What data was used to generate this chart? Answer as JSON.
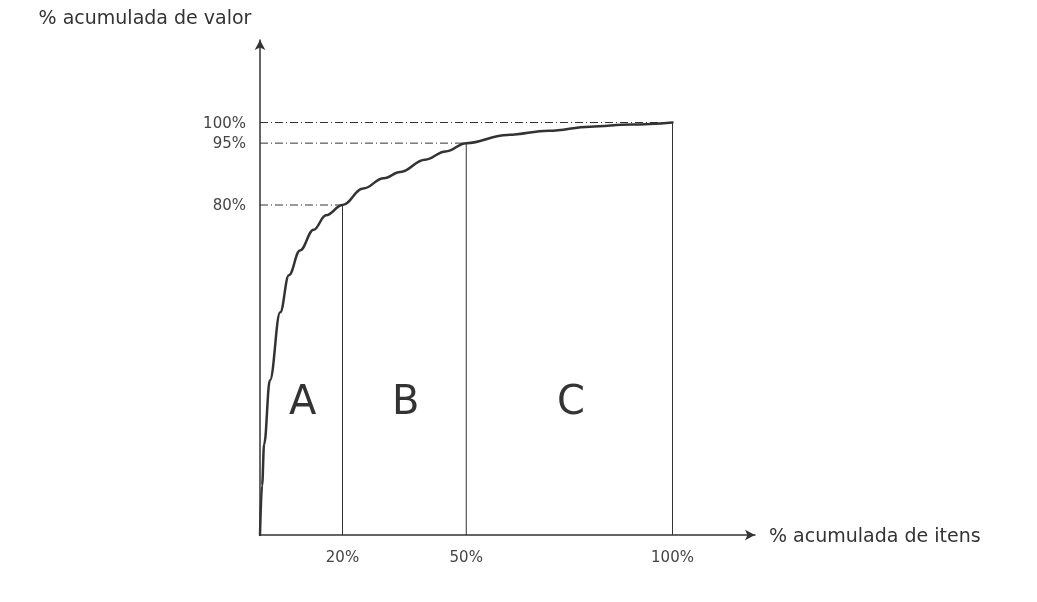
{
  "chart_data": {
    "type": "line",
    "xlabel": "% acumulada de itens",
    "ylabel": "% acumulada de valor",
    "series": [
      {
        "color": "#333333",
        "x": [
          0,
          0.5,
          1,
          2.4,
          4.9,
          7,
          9.7,
          13,
          16,
          20,
          25,
          30,
          34,
          40,
          45,
          50,
          60,
          70,
          80,
          90,
          100
        ],
        "values": [
          0,
          12,
          22,
          37.5,
          54,
          63,
          69,
          74,
          77.5,
          80,
          84,
          86.5,
          88,
          91,
          93,
          95,
          97,
          98,
          99,
          99.5,
          100
        ]
      }
    ],
    "xlim": [
      0,
      120
    ],
    "ylim": [
      0,
      120
    ],
    "xticks": [
      {
        "value": 20,
        "label": "20%"
      },
      {
        "value": 50,
        "label": "50%"
      },
      {
        "value": 100,
        "label": "100%"
      }
    ],
    "yticks": [
      {
        "value": 80,
        "label": "80%"
      },
      {
        "value": 95,
        "label": "95%"
      },
      {
        "value": 100,
        "label": "100%"
      }
    ],
    "ref_lines": [
      {
        "axis": "y",
        "value": 80,
        "color": "#333333",
        "line_style": "dashdot"
      },
      {
        "axis": "y",
        "value": 95,
        "color": "#333333",
        "line_style": "dashdot"
      },
      {
        "axis": "y",
        "value": 100,
        "color": "#333333",
        "line_style": "dashdot"
      },
      {
        "axis": "x",
        "value": 20,
        "color": "#333333",
        "line_style": "solid"
      },
      {
        "axis": "x",
        "value": 50,
        "color": "#333333",
        "line_style": "solid"
      },
      {
        "axis": "x",
        "value": 100,
        "color": "#333333",
        "line_style": "solid"
      }
    ],
    "annotations": [
      "A",
      "B",
      "C"
    ],
    "grid": false,
    "marker": "none",
    "line_style": "solid"
  }
}
